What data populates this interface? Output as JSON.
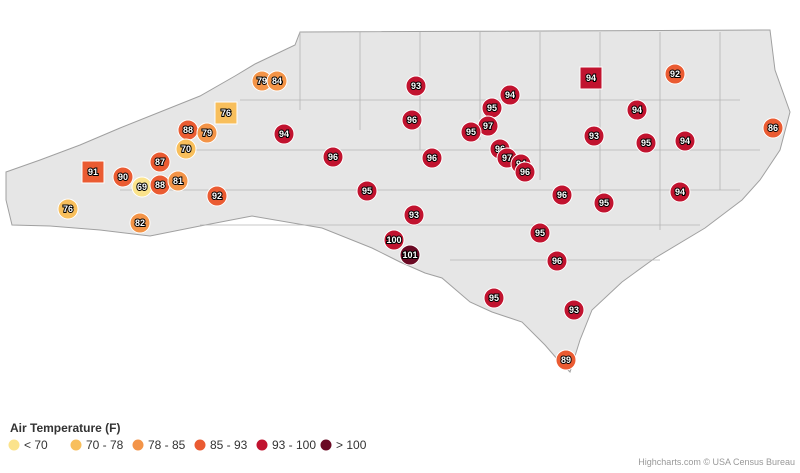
{
  "legend": {
    "title": "Air Temperature (F)",
    "items": [
      {
        "label": "< 70",
        "color": "#fbe38c"
      },
      {
        "label": "70 - 78",
        "color": "#f8bf5c"
      },
      {
        "label": "78 - 85",
        "color": "#f39448"
      },
      {
        "label": "85 - 93",
        "color": "#ea5b32"
      },
      {
        "label": "93 - 100",
        "color": "#c1132f"
      },
      {
        "label": "> 100",
        "color": "#6a0a24"
      }
    ]
  },
  "markers": [
    {
      "value": 79,
      "color": "#f39448",
      "shape": "circle"
    },
    {
      "value": 84,
      "color": "#f39448",
      "shape": "circle"
    },
    {
      "value": 76,
      "color": "#f8bf5c",
      "shape": "square"
    },
    {
      "value": 88,
      "color": "#ea5b32",
      "shape": "circle"
    },
    {
      "value": 79,
      "color": "#f39448",
      "shape": "circle"
    },
    {
      "value": 70,
      "color": "#f8bf5c",
      "shape": "circle"
    },
    {
      "value": 94,
      "color": "#c1132f",
      "shape": "circle"
    },
    {
      "value": 93,
      "color": "#c1132f",
      "shape": "circle"
    },
    {
      "value": 95,
      "color": "#c1132f",
      "shape": "circle"
    },
    {
      "value": 94,
      "color": "#c1132f",
      "shape": "circle"
    },
    {
      "value": 96,
      "color": "#c1132f",
      "shape": "circle"
    },
    {
      "value": 97,
      "color": "#c1132f",
      "shape": "circle"
    },
    {
      "value": 95,
      "color": "#c1132f",
      "shape": "circle"
    },
    {
      "value": 94,
      "color": "#c1132f",
      "shape": "square"
    },
    {
      "value": 92,
      "color": "#ea5b32",
      "shape": "circle"
    },
    {
      "value": 94,
      "color": "#c1132f",
      "shape": "circle"
    },
    {
      "value": 93,
      "color": "#c1132f",
      "shape": "circle"
    },
    {
      "value": 95,
      "color": "#c1132f",
      "shape": "circle"
    },
    {
      "value": 94,
      "color": "#c1132f",
      "shape": "circle"
    },
    {
      "value": 86,
      "color": "#ea5b32",
      "shape": "circle"
    },
    {
      "value": 96,
      "color": "#c1132f",
      "shape": "circle"
    },
    {
      "value": 96,
      "color": "#c1132f",
      "shape": "circle"
    },
    {
      "value": 96,
      "color": "#c1132f",
      "shape": "circle"
    },
    {
      "value": 97,
      "color": "#c1132f",
      "shape": "circle"
    },
    {
      "value": 94,
      "color": "#c1132f",
      "shape": "circle"
    },
    {
      "value": 96,
      "color": "#c1132f",
      "shape": "circle"
    },
    {
      "value": 91,
      "color": "#ea5b32",
      "shape": "square"
    },
    {
      "value": 90,
      "color": "#ea5b32",
      "shape": "circle"
    },
    {
      "value": 87,
      "color": "#ea5b32",
      "shape": "circle"
    },
    {
      "value": 69,
      "color": "#fbe38c",
      "shape": "circle"
    },
    {
      "value": 88,
      "color": "#ea5b32",
      "shape": "circle"
    },
    {
      "value": 81,
      "color": "#f39448",
      "shape": "circle"
    },
    {
      "value": 95,
      "color": "#c1132f",
      "shape": "circle"
    },
    {
      "value": 96,
      "color": "#c1132f",
      "shape": "circle"
    },
    {
      "value": 95,
      "color": "#c1132f",
      "shape": "circle"
    },
    {
      "value": 94,
      "color": "#c1132f",
      "shape": "circle"
    },
    {
      "value": 92,
      "color": "#ea5b32",
      "shape": "circle"
    },
    {
      "value": 76,
      "color": "#f8bf5c",
      "shape": "circle"
    },
    {
      "value": 93,
      "color": "#c1132f",
      "shape": "circle"
    },
    {
      "value": 82,
      "color": "#f39448",
      "shape": "circle"
    },
    {
      "value": 95,
      "color": "#c1132f",
      "shape": "circle"
    },
    {
      "value": 100,
      "color": "#c1132f",
      "shape": "circle"
    },
    {
      "value": 101,
      "color": "#6a0a24",
      "shape": "circle"
    },
    {
      "value": 96,
      "color": "#c1132f",
      "shape": "circle"
    },
    {
      "value": 95,
      "color": "#c1132f",
      "shape": "circle"
    },
    {
      "value": 93,
      "color": "#c1132f",
      "shape": "circle"
    },
    {
      "value": 89,
      "color": "#ea5b32",
      "shape": "circle"
    }
  ],
  "credits": "Highcharts.com © USA Census Bureau"
}
